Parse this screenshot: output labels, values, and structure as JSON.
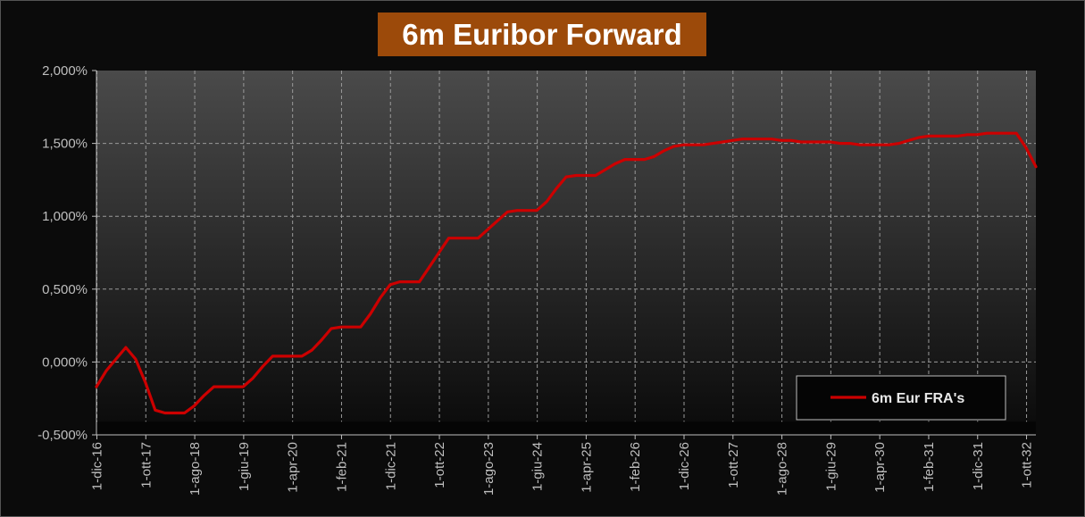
{
  "chart_data": {
    "type": "line",
    "title": "6m Euribor Forward",
    "xlabel": "",
    "ylabel": "",
    "ylim": [
      -0.5,
      2.0
    ],
    "y_ticks": [
      "2,000%",
      "1,500%",
      "1,000%",
      "0,500%",
      "0,000%",
      "-0,500%"
    ],
    "x_ticks": [
      "1-dic-16",
      "1-ott-17",
      "1-ago-18",
      "1-giu-19",
      "1-apr-20",
      "1-feb-21",
      "1-dic-21",
      "1-ott-22",
      "1-ago-23",
      "1-giu-24",
      "1-apr-25",
      "1-feb-26",
      "1-dic-26",
      "1-ott-27",
      "1-ago-28",
      "1-giu-29",
      "1-apr-30",
      "1-feb-31",
      "1-dic-31",
      "1-ott-32"
    ],
    "grid": true,
    "legend_position": "bottom-right",
    "series": [
      {
        "name": "6m Eur FRA's",
        "color": "#cc0000",
        "x": [
          "1-dic-16",
          "1-feb-17",
          "1-apr-17",
          "1-giu-17",
          "1-ago-17",
          "1-ott-17",
          "1-dic-17",
          "1-feb-18",
          "1-apr-18",
          "1-giu-18",
          "1-ago-18",
          "1-ott-18",
          "1-dic-18",
          "1-feb-19",
          "1-apr-19",
          "1-giu-19",
          "1-ago-19",
          "1-ott-19",
          "1-dic-19",
          "1-feb-20",
          "1-apr-20",
          "1-giu-20",
          "1-ago-20",
          "1-ott-20",
          "1-dic-20",
          "1-feb-21",
          "1-apr-21",
          "1-giu-21",
          "1-ago-21",
          "1-ott-21",
          "1-dic-21",
          "1-feb-22",
          "1-apr-22",
          "1-giu-22",
          "1-ago-22",
          "1-ott-22",
          "1-dic-22",
          "1-feb-23",
          "1-apr-23",
          "1-giu-23",
          "1-ago-23",
          "1-ott-23",
          "1-dic-23",
          "1-feb-24",
          "1-apr-24",
          "1-giu-24",
          "1-ago-24",
          "1-ott-24",
          "1-dic-24",
          "1-feb-25",
          "1-apr-25",
          "1-giu-25",
          "1-ago-25",
          "1-ott-25",
          "1-dic-25",
          "1-feb-26",
          "1-apr-26",
          "1-giu-26",
          "1-ago-26",
          "1-ott-26",
          "1-dic-26",
          "1-feb-27",
          "1-apr-27",
          "1-giu-27",
          "1-ago-27",
          "1-ott-27",
          "1-dic-27",
          "1-feb-28",
          "1-apr-28",
          "1-giu-28",
          "1-ago-28",
          "1-ott-28",
          "1-dic-28",
          "1-feb-29",
          "1-apr-29",
          "1-giu-29",
          "1-ago-29",
          "1-ott-29",
          "1-dic-29",
          "1-feb-30",
          "1-apr-30",
          "1-giu-30",
          "1-ago-30",
          "1-ott-30",
          "1-dic-30",
          "1-feb-31",
          "1-apr-31",
          "1-giu-31",
          "1-ago-31",
          "1-ott-31",
          "1-dic-31",
          "1-feb-32",
          "1-apr-32",
          "1-giu-32",
          "1-ago-32",
          "1-ott-32",
          "1-dic-32"
        ],
        "values": [
          -0.17,
          -0.06,
          0.02,
          0.1,
          0.02,
          -0.14,
          -0.33,
          -0.35,
          -0.35,
          -0.35,
          -0.3,
          -0.23,
          -0.17,
          -0.17,
          -0.17,
          -0.17,
          -0.11,
          -0.03,
          0.04,
          0.04,
          0.04,
          0.04,
          0.08,
          0.15,
          0.23,
          0.24,
          0.24,
          0.24,
          0.33,
          0.44,
          0.53,
          0.55,
          0.55,
          0.55,
          0.65,
          0.75,
          0.85,
          0.85,
          0.85,
          0.85,
          0.91,
          0.97,
          1.03,
          1.04,
          1.04,
          1.04,
          1.1,
          1.19,
          1.27,
          1.28,
          1.28,
          1.28,
          1.32,
          1.36,
          1.39,
          1.39,
          1.39,
          1.41,
          1.45,
          1.48,
          1.49,
          1.49,
          1.49,
          1.5,
          1.51,
          1.52,
          1.53,
          1.53,
          1.53,
          1.53,
          1.52,
          1.52,
          1.51,
          1.51,
          1.51,
          1.51,
          1.5,
          1.5,
          1.49,
          1.49,
          1.49,
          1.49,
          1.5,
          1.52,
          1.54,
          1.55,
          1.55,
          1.55,
          1.55,
          1.56,
          1.56,
          1.57,
          1.57,
          1.57,
          1.57,
          1.47,
          1.34
        ]
      }
    ]
  }
}
